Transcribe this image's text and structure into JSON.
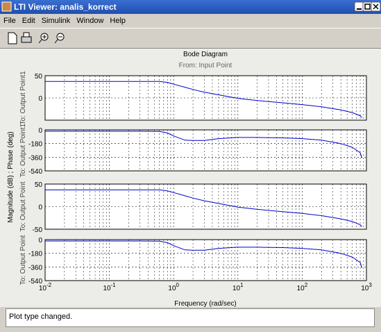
{
  "window": {
    "title": "LTI Viewer: analis_korrect"
  },
  "menu": [
    "File",
    "Edit",
    "Simulink",
    "Window",
    "Help"
  ],
  "chart_data": {
    "type": "line",
    "title": "Bode Diagram",
    "subtitle": "From: Input Point",
    "y_label": "Magnitude (dB) ; Phase (deg)",
    "x_label": "Frequency  (rad/sec)",
    "xscale": "log",
    "grid": true,
    "color": "#0000cc",
    "xlim": [
      0.01,
      1000
    ],
    "xticks": [
      {
        "value": 0.01,
        "label": {
          "base": "10",
          "exponent": "-2"
        }
      },
      {
        "value": 0.1,
        "label": {
          "base": "10",
          "exponent": "-1"
        }
      },
      {
        "value": 1,
        "label": {
          "base": "10",
          "exponent": "0"
        }
      },
      {
        "value": 10,
        "label": {
          "base": "10",
          "exponent": "1"
        }
      },
      {
        "value": 100,
        "label": {
          "base": "10",
          "exponent": "2"
        }
      },
      {
        "value": 1000,
        "label": {
          "base": "10",
          "exponent": "3"
        }
      }
    ],
    "x": [
      0.01,
      0.1,
      0.3,
      0.6,
      0.8,
      1,
      1.5,
      2,
      3,
      5,
      10,
      20,
      50,
      100,
      200,
      400,
      600,
      800,
      850
    ],
    "panels": [
      {
        "label": "To: Output Point1",
        "ylim": [
          -50,
          50
        ],
        "yticks": [
          0,
          50
        ],
        "values": [
          37,
          37,
          37,
          37,
          35,
          31,
          24,
          19,
          13,
          7,
          -1,
          -6,
          -11,
          -15,
          -20,
          -27,
          -33,
          -40,
          -44
        ]
      },
      {
        "label": "To: Output Point1",
        "ylim": [
          -540,
          0
        ],
        "yticks": [
          -540,
          -360,
          -180,
          0
        ],
        "values": [
          -18,
          -18,
          -18,
          -20,
          -40,
          -80,
          -135,
          -140,
          -140,
          -115,
          -100,
          -100,
          -105,
          -115,
          -135,
          -180,
          -230,
          -300,
          -370
        ]
      },
      {
        "label": "To: Output Point",
        "ylim": [
          -50,
          50
        ],
        "yticks": [
          -50,
          0,
          50
        ],
        "values": [
          37,
          37,
          37,
          37,
          35,
          31,
          24,
          19,
          13,
          7,
          -1,
          -6,
          -11,
          -15,
          -20,
          -27,
          -33,
          -40,
          -44
        ]
      },
      {
        "label": "To: Output Point",
        "ylim": [
          -540,
          0
        ],
        "yticks": [
          -540,
          -360,
          -180,
          0
        ],
        "values": [
          -18,
          -18,
          -18,
          -20,
          -40,
          -80,
          -135,
          -140,
          -140,
          -115,
          -100,
          -100,
          -105,
          -115,
          -135,
          -180,
          -230,
          -300,
          -370
        ]
      }
    ]
  },
  "status": "Plot type changed."
}
